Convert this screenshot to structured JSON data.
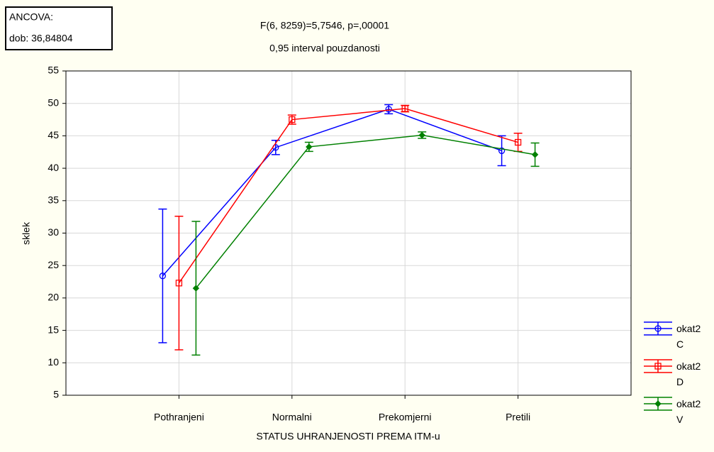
{
  "chart_data": {
    "type": "line",
    "title": "F(6, 8259)=5,7546, p=,00001",
    "subtitle": "0,95 interval pouzdanosti",
    "annotation": [
      "ANCOVA:",
      "dob: 36,84804"
    ],
    "x_label": "STATUS UHRANJENOSTI PREMA ITM-u",
    "y_label": "sklek",
    "categories": [
      "Pothranjeni",
      "Normalni",
      "Prekomjerni",
      "Pretili"
    ],
    "ylim": [
      5,
      55
    ],
    "yticks": [
      5,
      10,
      15,
      20,
      25,
      30,
      35,
      40,
      45,
      50,
      55
    ],
    "grid": true,
    "legend": "right",
    "series": [
      {
        "name": "okat2 C",
        "color": "#0000ff",
        "marker": "circle",
        "values": [
          23.4,
          43.2,
          49.1,
          42.7
        ],
        "errors": [
          10.3,
          1.1,
          0.7,
          2.3
        ]
      },
      {
        "name": "okat2 D",
        "color": "#ff0000",
        "marker": "square",
        "values": [
          22.3,
          47.5,
          49.2,
          44.0
        ],
        "errors": [
          10.3,
          0.7,
          0.5,
          1.4
        ]
      },
      {
        "name": "okat2 V",
        "color": "#008000",
        "marker": "diamond",
        "values": [
          21.5,
          43.3,
          45.1,
          42.1
        ],
        "errors": [
          10.3,
          0.7,
          0.5,
          1.8
        ]
      }
    ]
  }
}
